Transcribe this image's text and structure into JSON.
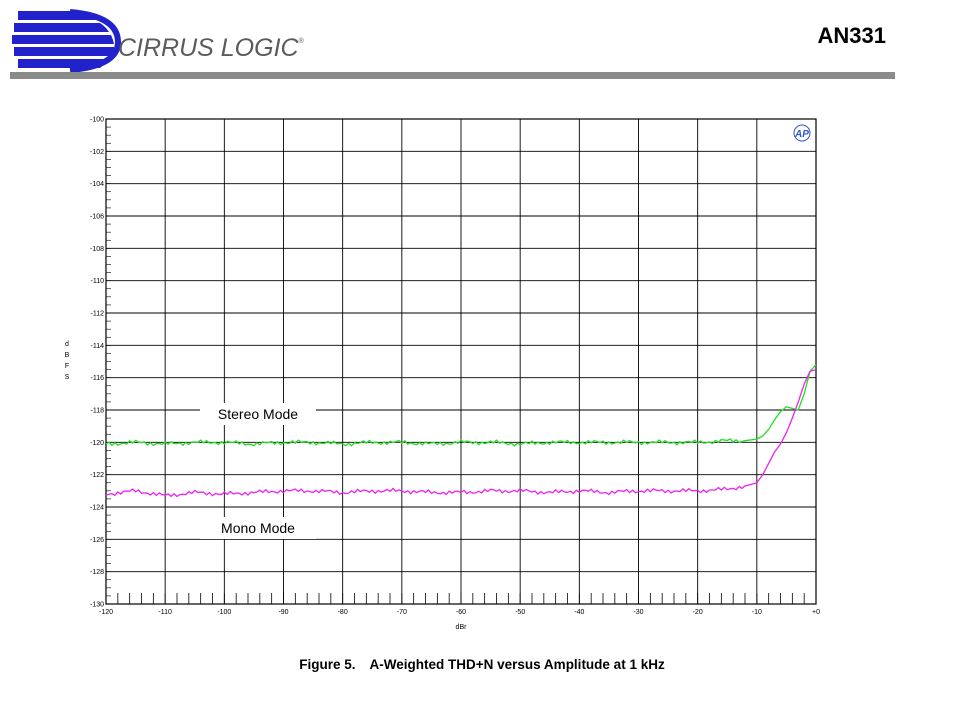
{
  "header": {
    "company": "CIRRUS LOGIC",
    "registered": "®",
    "doc_id": "AN331"
  },
  "figure": {
    "number": "Figure 5.",
    "caption": "A-Weighted THD+N versus Amplitude at 1 kHz"
  },
  "colors": {
    "stereo": "#22dd22",
    "mono": "#ee22ee",
    "grid": "#000000",
    "rule": "#8a8a8a",
    "logo_blue": "#2222cc"
  },
  "chart_data": {
    "type": "line",
    "xlabel": "dBr",
    "ylabel": "dBFS",
    "xlim": [
      -120,
      0
    ],
    "ylim": [
      -130,
      -100
    ],
    "x_ticks": [
      -120,
      -110,
      -100,
      -90,
      -80,
      -70,
      -60,
      -50,
      -40,
      -30,
      -20,
      -10,
      0
    ],
    "x_tick_labels": [
      "-120",
      "-110",
      "-100",
      "-90",
      "-80",
      "-70",
      "-60",
      "-50",
      "-40",
      "-30",
      "-20",
      "-10",
      "+0"
    ],
    "y_ticks": [
      -100,
      -102,
      -104,
      -106,
      -108,
      -110,
      -112,
      -114,
      -116,
      -118,
      -120,
      -122,
      -124,
      -126,
      -128,
      -130
    ],
    "y_tick_labels": [
      "-100",
      "-102",
      "-104",
      "-106",
      "-108",
      "-110",
      "-112",
      "-114",
      "-116",
      "-118",
      "-120",
      "-122",
      "-124",
      "-126",
      "-128",
      "-130"
    ],
    "grid": true,
    "annotations": [
      "Stereo Mode",
      "Mono Mode"
    ],
    "series": [
      {
        "x": [
          -120,
          -115,
          -110,
          -105,
          -100,
          -95,
          -90,
          -85,
          -80,
          -75,
          -70,
          -65,
          -60,
          -55,
          -50,
          -45,
          -40,
          -35,
          -30,
          -25,
          -20,
          -15,
          -12,
          -10,
          -9,
          -8,
          -7,
          -6,
          -5,
          -4,
          -3,
          -2,
          -1,
          0
        ],
        "y": [
          -120.1,
          -120.0,
          -120.1,
          -120.0,
          -120.0,
          -120.1,
          -120.0,
          -120.0,
          -120.1,
          -120.0,
          -120.0,
          -120.1,
          -120.0,
          -120.0,
          -120.1,
          -120.0,
          -120.0,
          -120.0,
          -120.0,
          -120.0,
          -120.0,
          -119.9,
          -119.9,
          -119.8,
          -119.6,
          -119.2,
          -118.6,
          -118.1,
          -117.8,
          -117.9,
          -118.0,
          -117.0,
          -115.6,
          -115.2
        ]
      },
      {
        "x": [
          -120,
          -115,
          -110,
          -105,
          -100,
          -95,
          -90,
          -85,
          -80,
          -75,
          -70,
          -65,
          -60,
          -55,
          -50,
          -45,
          -40,
          -35,
          -30,
          -25,
          -20,
          -15,
          -12,
          -10,
          -9,
          -8,
          -7,
          -6,
          -5,
          -4,
          -3,
          -2,
          -1,
          0
        ],
        "y": [
          -123.2,
          -123.0,
          -123.3,
          -123.1,
          -123.2,
          -123.1,
          -123.0,
          -123.0,
          -123.1,
          -123.0,
          -123.0,
          -123.1,
          -123.1,
          -123.0,
          -123.0,
          -123.1,
          -123.0,
          -123.1,
          -123.0,
          -123.0,
          -123.0,
          -122.9,
          -122.7,
          -122.5,
          -122.0,
          -121.3,
          -120.6,
          -120.1,
          -119.4,
          -118.5,
          -117.5,
          -116.4,
          -115.6,
          -115.5
        ]
      }
    ]
  }
}
